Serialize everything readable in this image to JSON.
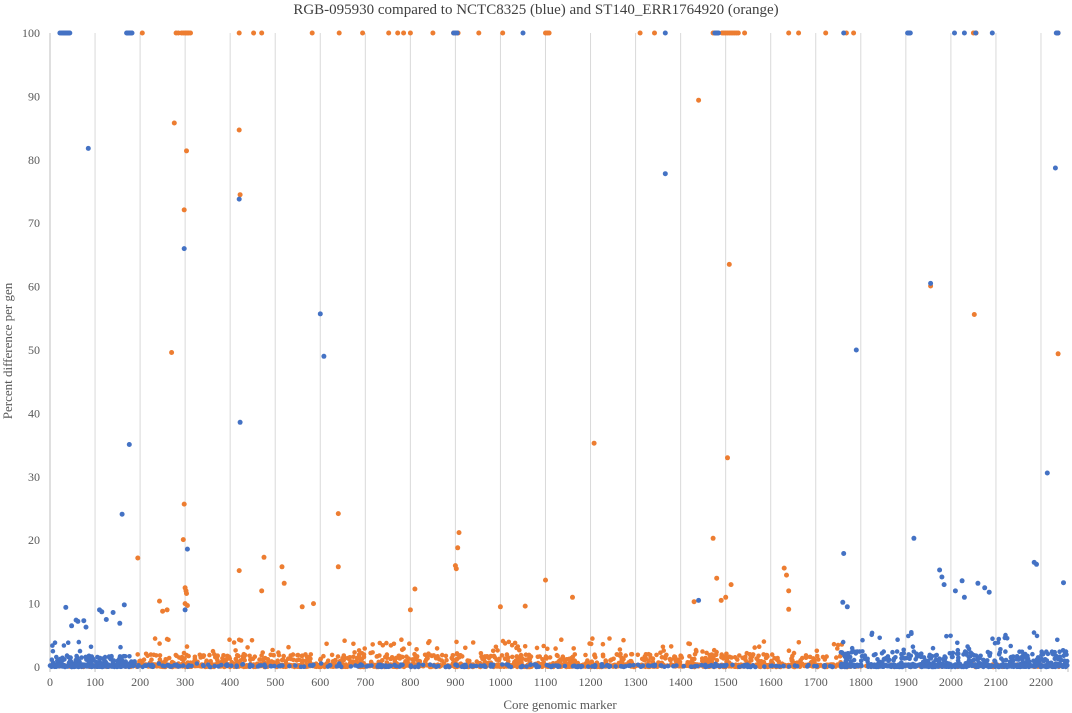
{
  "chart_data": {
    "type": "scatter",
    "title": "RGB-095930 compared to NCTC8325 (blue) and ST140_ERR1764920 (orange)",
    "xlabel": "Core genomic marker",
    "ylabel": "Percent difference per gen",
    "xlim": [
      0,
      2260
    ],
    "ylim": [
      0,
      100
    ],
    "x_ticks": [
      "0",
      "100",
      "200",
      "300",
      "400",
      "500",
      "600",
      "700",
      "800",
      "900",
      "1000",
      "1100",
      "1200",
      "1300",
      "1400",
      "1500",
      "1600",
      "1700",
      "1800",
      "1900",
      "2000",
      "2100",
      "2200"
    ],
    "y_ticks": [
      "0",
      "10",
      "20",
      "30",
      "40",
      "50",
      "60",
      "70",
      "80",
      "90",
      "100"
    ],
    "grid": "vertical",
    "legend": "none",
    "colors": {
      "blue": "#4472c4",
      "orange": "#ed7d31"
    },
    "series": [
      {
        "color": "#4472c4",
        "x": [
          22,
          25,
          28,
          30,
          32,
          34,
          36,
          38,
          40,
          42,
          44,
          170,
          172,
          174,
          176,
          178,
          180,
          182,
          896,
          900,
          904,
          1050,
          1366,
          1476,
          1478,
          1480,
          1482,
          1484,
          1762,
          1904,
          1906,
          1908,
          1910,
          2008,
          2030,
          2055,
          2092,
          2234,
          2236,
          2238,
          85,
          176,
          160,
          420,
          422,
          600,
          608,
          1366,
          1790,
          1955,
          2232,
          2214,
          298,
          300,
          305,
          1762,
          1918,
          1440,
          35,
          58,
          62,
          48,
          75,
          80,
          110,
          115,
          125,
          140,
          165,
          155,
          1760,
          1770,
          1975,
          1980,
          1985,
          2010,
          2025,
          2030,
          2060,
          2075,
          2085,
          2185,
          2190,
          2250
        ],
        "y": [
          100,
          100,
          100,
          100,
          100,
          100,
          100,
          100,
          100,
          100,
          100,
          100,
          100,
          100,
          100,
          100,
          100,
          100,
          100,
          100,
          100,
          100,
          100,
          100,
          100,
          100,
          100,
          100,
          100,
          100,
          100,
          100,
          100,
          100,
          100,
          100,
          100,
          100,
          100,
          100,
          81.8,
          35.1,
          24.1,
          73.8,
          38.6,
          55.7,
          49,
          77.8,
          50,
          60.5,
          78.7,
          30.6,
          66,
          9,
          18.6,
          17.9,
          20.3,
          10.5,
          9.4,
          7.4,
          7.2,
          6.5,
          7.3,
          6.3,
          9,
          8.7,
          7.5,
          8.6,
          9.8,
          6.9,
          10.2,
          9.5,
          15.3,
          14.2,
          13,
          12,
          13.6,
          11,
          13.2,
          12.5,
          11.8,
          16.5,
          16.2,
          13.3
        ]
      },
      {
        "color": "#ed7d31",
        "x": [
          205,
          280,
          285,
          292,
          296,
          300,
          302,
          305,
          308,
          312,
          420,
          452,
          470,
          582,
          642,
          694,
          752,
          772,
          785,
          800,
          850,
          896,
          900,
          906,
          952,
          1005,
          1100,
          1104,
          1108,
          1310,
          1342,
          1472,
          1476,
          1480,
          1492,
          1496,
          1500,
          1504,
          1508,
          1512,
          1516,
          1520,
          1524,
          1528,
          1542,
          1640,
          1662,
          1722,
          1768,
          1784,
          2050,
          2056,
          2238,
          276,
          270,
          298,
          303,
          420,
          422,
          1440,
          1508,
          1955,
          2052,
          2238,
          1208,
          1504,
          298,
          296,
          300,
          302,
          303,
          300,
          195,
          640,
          420,
          475,
          470,
          515,
          520,
          585,
          640,
          810,
          900,
          902,
          905,
          908,
          1100,
          1160,
          1472,
          1480,
          1630,
          1635,
          1640,
          243,
          260,
          305,
          250,
          560,
          800,
          1000,
          1055,
          1430,
          1512,
          1500,
          1490,
          1640
        ],
        "y": [
          100,
          100,
          100,
          100,
          100,
          100,
          100,
          100,
          100,
          100,
          100,
          100,
          100,
          100,
          100,
          100,
          100,
          100,
          100,
          100,
          100,
          100,
          100,
          100,
          100,
          100,
          100,
          100,
          100,
          100,
          100,
          100,
          100,
          100,
          100,
          100,
          100,
          100,
          100,
          100,
          100,
          100,
          100,
          100,
          100,
          100,
          100,
          100,
          100,
          100,
          100,
          100,
          100,
          85.8,
          49.6,
          72.1,
          81.4,
          84.7,
          74.5,
          89.4,
          63.5,
          60.1,
          55.6,
          49.4,
          35.3,
          33,
          25.7,
          20.1,
          12.5,
          12,
          11.6,
          10,
          17.2,
          24.2,
          15.2,
          17.3,
          12,
          15.8,
          13.2,
          10,
          15.8,
          12.3,
          16,
          15.5,
          18.8,
          21.2,
          13.7,
          11,
          20.3,
          14,
          15.6,
          14.5,
          12,
          10.4,
          9,
          9.7,
          8.8,
          9.5,
          9,
          9.5,
          9.6,
          10.3,
          13,
          11,
          10.5,
          9.1
        ]
      }
    ]
  }
}
